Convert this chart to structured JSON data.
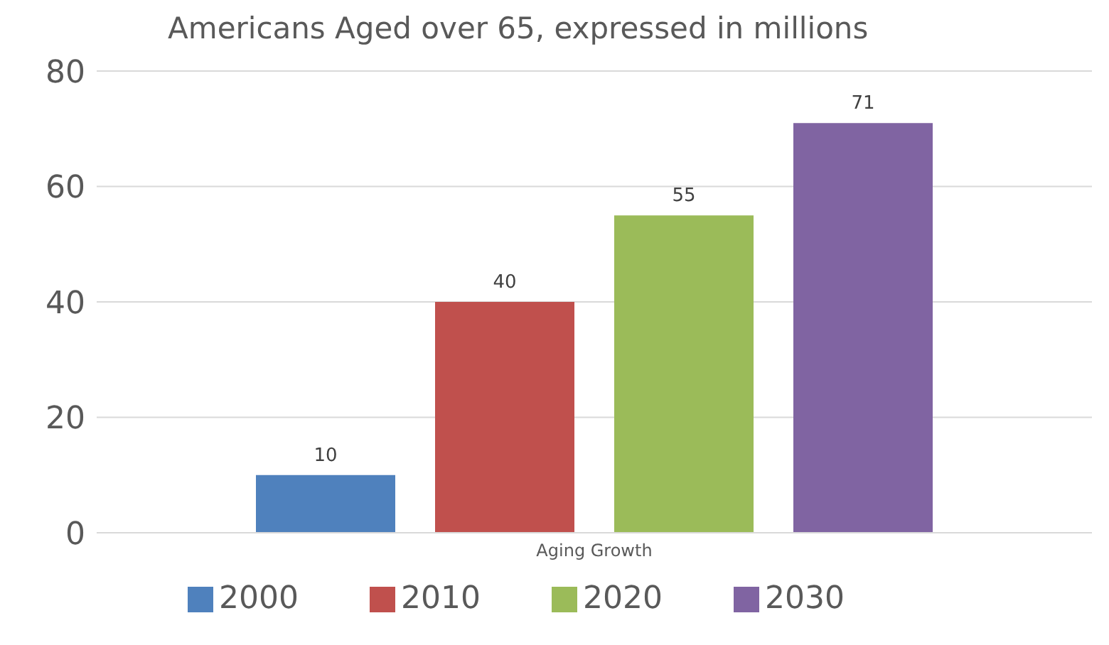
{
  "chart_data": {
    "type": "bar",
    "title": "Americans Aged over 65, expressed in millions",
    "categories": [
      "Aging Growth"
    ],
    "series": [
      {
        "name": "2000",
        "color": "#4f81bd",
        "values": [
          10
        ]
      },
      {
        "name": "2010",
        "color": "#c0504d",
        "values": [
          40
        ]
      },
      {
        "name": "2020",
        "color": "#9bbb59",
        "values": [
          55
        ]
      },
      {
        "name": "2030",
        "color": "#8064a2",
        "values": [
          71
        ]
      }
    ],
    "ylim": [
      0,
      80
    ],
    "yticks": [
      0,
      20,
      40,
      60,
      80
    ],
    "grid": "y",
    "legend": "bottom",
    "data_labels": true
  }
}
